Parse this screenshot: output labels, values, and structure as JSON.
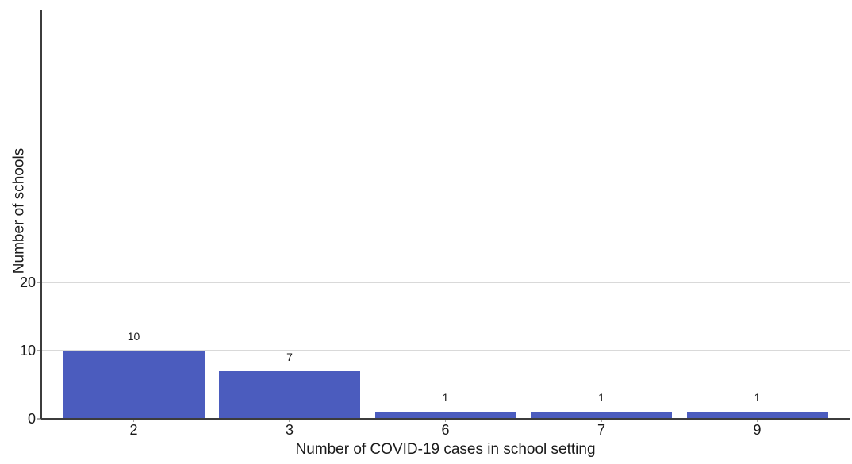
{
  "chart_data": {
    "type": "bar",
    "title": "",
    "xlabel": "Number of COVID-19 cases in school setting",
    "ylabel": "Number of schools",
    "categories": [
      "2",
      "3",
      "6",
      "7",
      "9"
    ],
    "values": [
      10,
      7,
      1,
      1,
      1
    ],
    "bar_labels": [
      "10",
      "7",
      "1",
      "1",
      "1"
    ],
    "yticks": [
      0,
      10,
      20
    ],
    "ylim": [
      0,
      60
    ],
    "grid": "horizontal-major-only",
    "legend": "none",
    "colors": {
      "bar": "#4b5cbe",
      "gridline": "#d9d9d9",
      "tick": "#a3a3a3",
      "axis": "#3c3c3c",
      "text": "#1a1a1a",
      "background": "#ffffff"
    }
  }
}
